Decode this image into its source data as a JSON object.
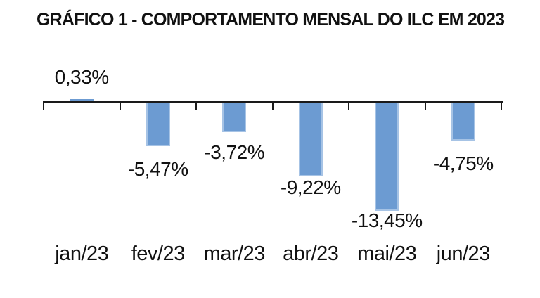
{
  "chart_data": {
    "type": "bar",
    "title": "GRÁFICO 1 - COMPORTAMENTO MENSAL DO ILC EM 2023",
    "categories": [
      "jan/23",
      "fev/23",
      "mar/23",
      "abr/23",
      "mai/23",
      "jun/23"
    ],
    "values": [
      0.33,
      -5.47,
      -3.72,
      -9.22,
      -13.45,
      -4.75
    ],
    "value_labels": [
      "0,33%",
      "-5,47%",
      "-3,72%",
      "-9,22%",
      "-13,45%",
      "-4,75%"
    ],
    "xlabel": "",
    "ylabel": "",
    "ylim": [
      -15,
      1
    ],
    "grid": false,
    "legend": false,
    "y_axis_shown": false,
    "baseline": 0,
    "bar_color": "#6C9BD2",
    "bar_border_color": "#A6C3E5",
    "axis_color": "#1A1A1A",
    "text_color": "#111111",
    "background_color": "#FFFFFF"
  }
}
